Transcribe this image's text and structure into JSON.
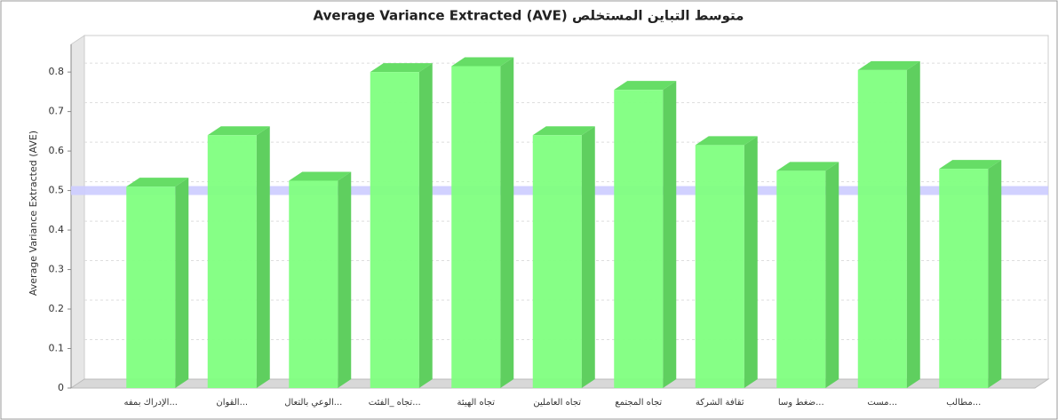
{
  "chart_data": {
    "type": "bar3d",
    "title": "Average Variance Extracted (AVE) متوسط التباين المستخلص",
    "y_label": "Average Variance Extracted (AVE)",
    "categories": [
      "الإدراك بمفه...",
      "القوان...",
      "الوعي بالتعال...",
      "تجاه _الفئت...",
      "تجاه الهيئة",
      "تجاه العاملين",
      "تجاه المجتمع",
      "ثقافة الشركة",
      "ضغط وسا...",
      "مست...",
      "مطالب..."
    ],
    "values": [
      0.51,
      0.64,
      0.525,
      0.8,
      0.815,
      0.64,
      0.755,
      0.615,
      0.55,
      0.805,
      0.555
    ],
    "color": "#7fff7f",
    "threshold": 0.5,
    "threshold_color": "#ccccff",
    "ylim": [
      0,
      0.87
    ],
    "yticks": [
      0,
      0.1,
      0.2,
      0.3,
      0.4,
      0.5,
      0.6,
      0.7,
      0.8
    ],
    "grid": true
  }
}
